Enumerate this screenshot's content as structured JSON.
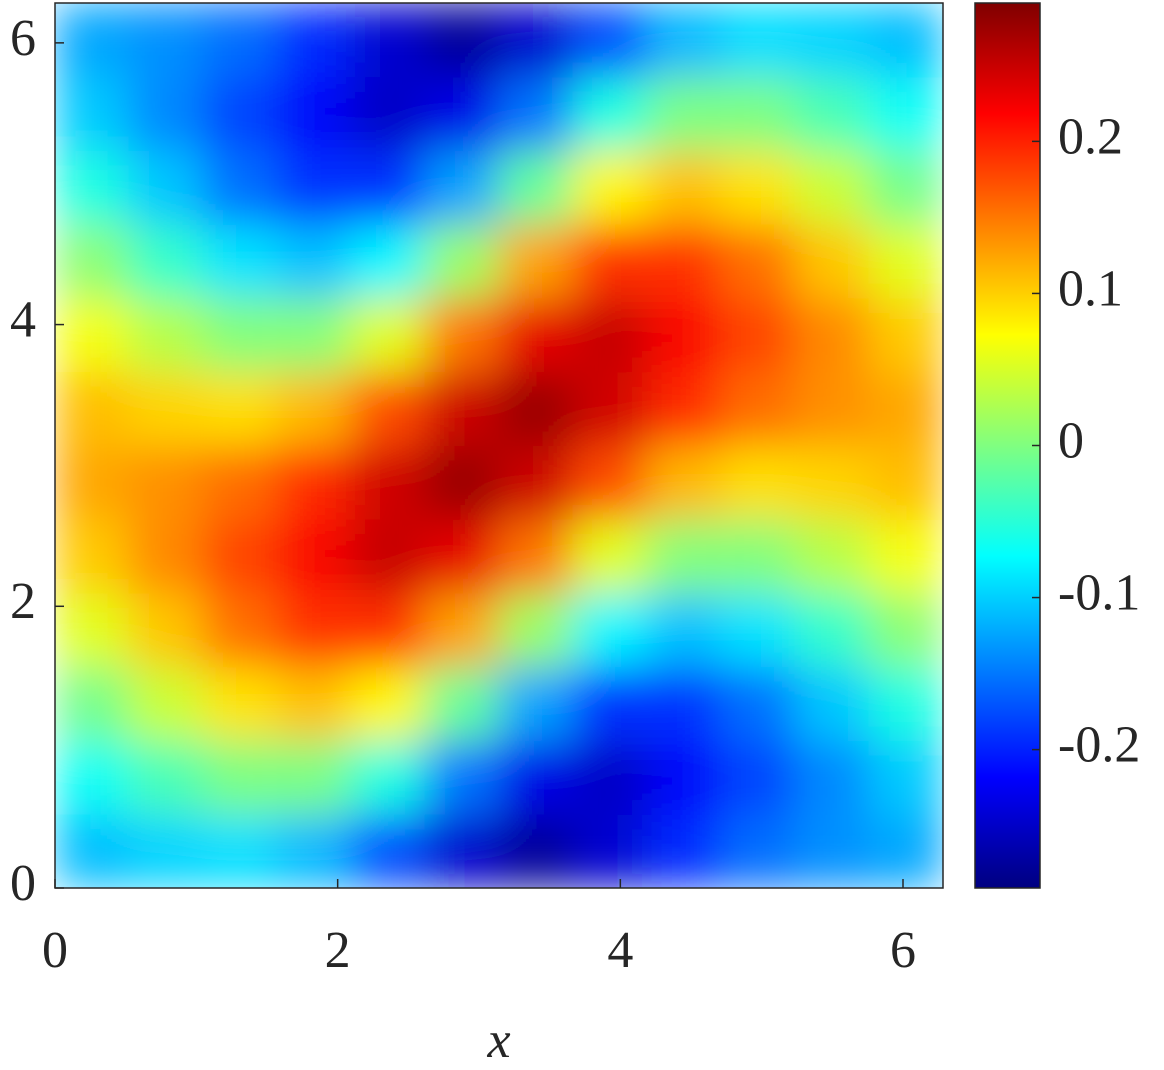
{
  "chart_data": {
    "type": "heatmap",
    "colormap": "jet",
    "xlabel": "x",
    "x": [
      0.262,
      0.785,
      1.309,
      1.833,
      2.356,
      2.88,
      3.403,
      3.927,
      4.451,
      4.974,
      5.498,
      6.021
    ],
    "y": [
      0.262,
      0.785,
      1.309,
      1.833,
      2.356,
      2.88,
      3.403,
      3.927,
      4.451,
      4.974,
      5.498,
      6.021
    ],
    "z": [
      [
        -0.11,
        -0.097,
        -0.091,
        -0.113,
        -0.174,
        -0.247,
        -0.277,
        -0.245,
        -0.193,
        -0.156,
        -0.136,
        -0.123
      ],
      [
        -0.067,
        -0.031,
        -0.002,
        -0.003,
        -0.056,
        -0.151,
        -0.232,
        -0.251,
        -0.221,
        -0.179,
        -0.14,
        -0.103
      ],
      [
        -0.007,
        0.043,
        0.088,
        0.108,
        0.077,
        -0.015,
        -0.125,
        -0.189,
        -0.19,
        -0.154,
        -0.105,
        -0.056
      ],
      [
        0.056,
        0.105,
        0.154,
        0.19,
        0.189,
        0.125,
        0.015,
        -0.077,
        -0.108,
        -0.088,
        -0.043,
        0.007
      ],
      [
        0.103,
        0.14,
        0.179,
        0.221,
        0.251,
        0.232,
        0.151,
        0.056,
        0.003,
        0.002,
        0.031,
        0.067
      ],
      [
        0.123,
        0.136,
        0.156,
        0.193,
        0.245,
        0.277,
        0.247,
        0.174,
        0.113,
        0.091,
        0.097,
        0.11
      ],
      [
        0.11,
        0.097,
        0.091,
        0.113,
        0.174,
        0.247,
        0.277,
        0.245,
        0.193,
        0.156,
        0.136,
        0.123
      ],
      [
        0.067,
        0.031,
        0.002,
        0.003,
        0.056,
        0.151,
        0.232,
        0.251,
        0.221,
        0.179,
        0.14,
        0.103
      ],
      [
        0.007,
        -0.043,
        -0.088,
        -0.108,
        -0.077,
        0.015,
        0.125,
        0.189,
        0.19,
        0.154,
        0.105,
        0.056
      ],
      [
        -0.056,
        -0.105,
        -0.154,
        -0.19,
        -0.189,
        -0.125,
        -0.015,
        0.077,
        0.108,
        0.088,
        0.043,
        -0.007
      ],
      [
        -0.103,
        -0.14,
        -0.179,
        -0.221,
        -0.251,
        -0.232,
        -0.151,
        -0.056,
        -0.003,
        -0.002,
        -0.031,
        -0.067
      ],
      [
        -0.123,
        -0.136,
        -0.156,
        -0.193,
        -0.245,
        -0.277,
        -0.247,
        -0.174,
        -0.113,
        -0.091,
        -0.097,
        -0.11
      ]
    ],
    "xlim": [
      0,
      6.283
    ],
    "ylim": [
      0,
      6.283
    ],
    "xticks": [
      0,
      2,
      4,
      6
    ],
    "yticks": [
      0,
      2,
      4,
      6
    ],
    "clim": [
      -0.291,
      0.291
    ],
    "cticks": [
      -0.2,
      -0.1,
      0,
      0.1,
      0.2
    ]
  }
}
